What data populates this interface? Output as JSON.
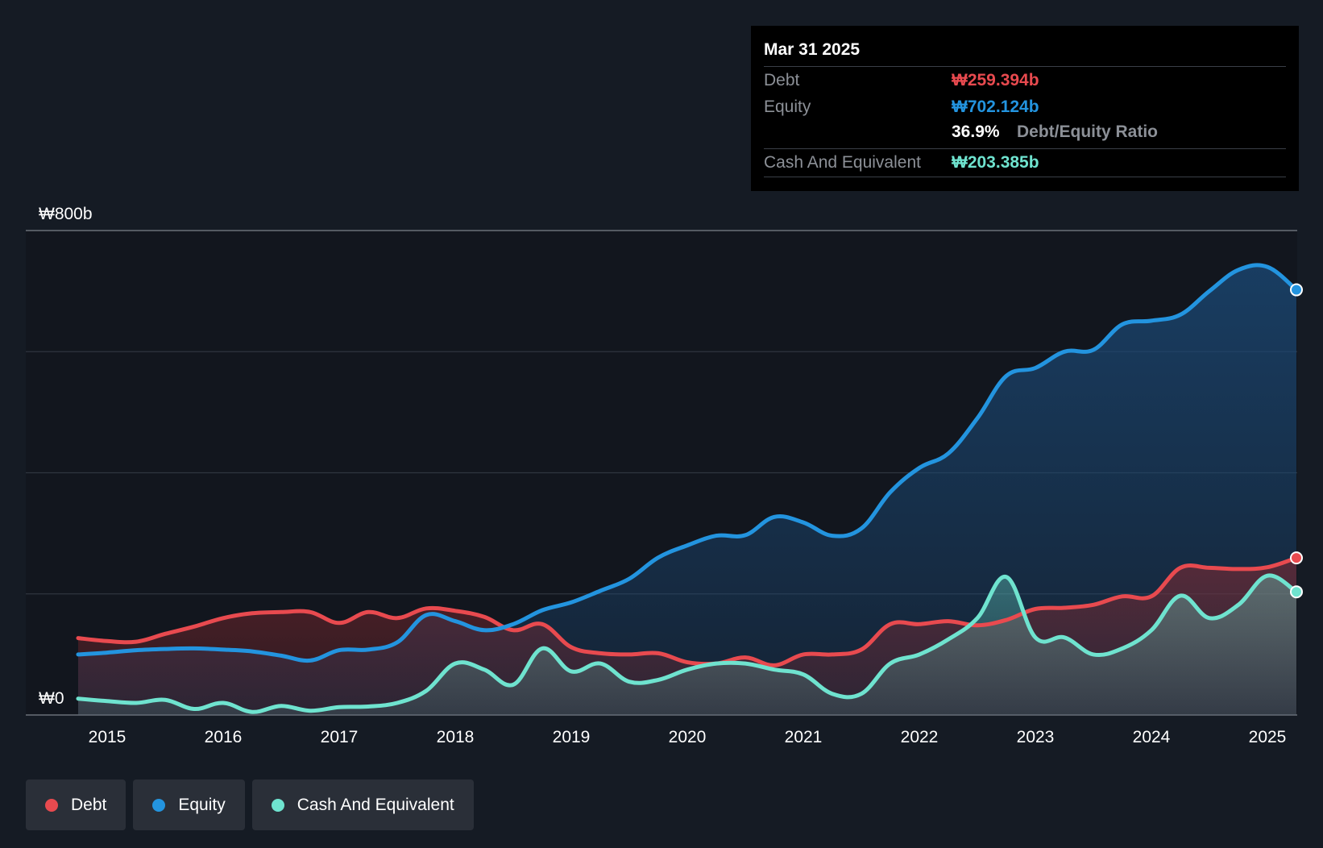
{
  "tooltip": {
    "date": "Mar 31 2025",
    "debt_label": "Debt",
    "debt_value": "₩259.394b",
    "equity_label": "Equity",
    "equity_value": "₩702.124b",
    "ratio_value": "36.9%",
    "ratio_label": "Debt/Equity Ratio",
    "cash_label": "Cash And Equivalent",
    "cash_value": "₩203.385b"
  },
  "legend": [
    {
      "label": "Debt",
      "color": "#e84a4f"
    },
    {
      "label": "Equity",
      "color": "#2394df"
    },
    {
      "label": "Cash And Equivalent",
      "color": "#6fe3cf"
    }
  ],
  "chart_data": {
    "type": "area",
    "y_unit": "₩ billions",
    "ylim": [
      0,
      800
    ],
    "y_tick_labels": [
      {
        "value": 800,
        "label": "₩800b"
      },
      {
        "value": 0,
        "label": "₩0"
      }
    ],
    "y_gridlines": [
      0,
      200,
      400,
      600,
      800
    ],
    "xlim": [
      2014.6,
      2025.25
    ],
    "x_ticks": [
      2015,
      2016,
      2017,
      2018,
      2019,
      2020,
      2021,
      2022,
      2023,
      2024,
      2025
    ],
    "x_tick_labels": [
      "2015",
      "2016",
      "2017",
      "2018",
      "2019",
      "2020",
      "2021",
      "2022",
      "2023",
      "2024",
      "2025"
    ],
    "grid": true,
    "legend_position": "bottom-left",
    "series": [
      {
        "name": "Debt",
        "color": "#e84a4f",
        "points": [
          [
            2014.75,
            127
          ],
          [
            2015.0,
            122
          ],
          [
            2015.25,
            121
          ],
          [
            2015.5,
            134
          ],
          [
            2015.75,
            146
          ],
          [
            2016.0,
            160
          ],
          [
            2016.25,
            168
          ],
          [
            2016.5,
            170
          ],
          [
            2016.75,
            170
          ],
          [
            2017.0,
            152
          ],
          [
            2017.25,
            170
          ],
          [
            2017.5,
            160
          ],
          [
            2017.75,
            176
          ],
          [
            2018.0,
            172
          ],
          [
            2018.25,
            162
          ],
          [
            2018.5,
            140
          ],
          [
            2018.75,
            150
          ],
          [
            2019.0,
            112
          ],
          [
            2019.25,
            102
          ],
          [
            2019.5,
            100
          ],
          [
            2019.75,
            102
          ],
          [
            2020.0,
            87
          ],
          [
            2020.25,
            85
          ],
          [
            2020.5,
            95
          ],
          [
            2020.75,
            82
          ],
          [
            2021.0,
            100
          ],
          [
            2021.25,
            100
          ],
          [
            2021.5,
            108
          ],
          [
            2021.75,
            150
          ],
          [
            2022.0,
            150
          ],
          [
            2022.25,
            155
          ],
          [
            2022.5,
            148
          ],
          [
            2022.75,
            157
          ],
          [
            2023.0,
            175
          ],
          [
            2023.25,
            177
          ],
          [
            2023.5,
            182
          ],
          [
            2023.75,
            196
          ],
          [
            2024.0,
            196
          ],
          [
            2024.25,
            243
          ],
          [
            2024.5,
            243
          ],
          [
            2024.75,
            241
          ],
          [
            2025.0,
            244
          ],
          [
            2025.25,
            259.4
          ]
        ]
      },
      {
        "name": "Equity",
        "color": "#2394df",
        "points": [
          [
            2014.75,
            100
          ],
          [
            2015.0,
            103
          ],
          [
            2015.25,
            107
          ],
          [
            2015.5,
            109
          ],
          [
            2015.75,
            110
          ],
          [
            2016.0,
            108
          ],
          [
            2016.25,
            105
          ],
          [
            2016.5,
            98
          ],
          [
            2016.75,
            90
          ],
          [
            2017.0,
            107
          ],
          [
            2017.25,
            108
          ],
          [
            2017.5,
            120
          ],
          [
            2017.75,
            165
          ],
          [
            2018.0,
            155
          ],
          [
            2018.25,
            140
          ],
          [
            2018.5,
            150
          ],
          [
            2018.75,
            173
          ],
          [
            2019.0,
            186
          ],
          [
            2019.25,
            205
          ],
          [
            2019.5,
            225
          ],
          [
            2019.75,
            260
          ],
          [
            2020.0,
            280
          ],
          [
            2020.25,
            296
          ],
          [
            2020.5,
            297
          ],
          [
            2020.75,
            327
          ],
          [
            2021.0,
            318
          ],
          [
            2021.25,
            296
          ],
          [
            2021.5,
            308
          ],
          [
            2021.75,
            368
          ],
          [
            2022.0,
            408
          ],
          [
            2022.25,
            432
          ],
          [
            2022.5,
            490
          ],
          [
            2022.75,
            560
          ],
          [
            2023.0,
            573
          ],
          [
            2023.25,
            600
          ],
          [
            2023.5,
            603
          ],
          [
            2023.75,
            645
          ],
          [
            2024.0,
            651
          ],
          [
            2024.25,
            661
          ],
          [
            2024.5,
            700
          ],
          [
            2024.75,
            735
          ],
          [
            2025.0,
            740
          ],
          [
            2025.25,
            702.1
          ]
        ]
      },
      {
        "name": "Cash And Equivalent",
        "color": "#6fe3cf",
        "points": [
          [
            2014.75,
            27
          ],
          [
            2015.0,
            23
          ],
          [
            2015.25,
            20
          ],
          [
            2015.5,
            25
          ],
          [
            2015.75,
            10
          ],
          [
            2016.0,
            20
          ],
          [
            2016.25,
            5
          ],
          [
            2016.5,
            15
          ],
          [
            2016.75,
            7
          ],
          [
            2017.0,
            13
          ],
          [
            2017.25,
            14
          ],
          [
            2017.5,
            20
          ],
          [
            2017.75,
            40
          ],
          [
            2018.0,
            85
          ],
          [
            2018.25,
            75
          ],
          [
            2018.5,
            50
          ],
          [
            2018.75,
            110
          ],
          [
            2019.0,
            72
          ],
          [
            2019.25,
            85
          ],
          [
            2019.5,
            55
          ],
          [
            2019.75,
            58
          ],
          [
            2020.0,
            75
          ],
          [
            2020.25,
            85
          ],
          [
            2020.5,
            85
          ],
          [
            2020.75,
            75
          ],
          [
            2021.0,
            67
          ],
          [
            2021.25,
            35
          ],
          [
            2021.5,
            35
          ],
          [
            2021.75,
            85
          ],
          [
            2022.0,
            100
          ],
          [
            2022.25,
            125
          ],
          [
            2022.5,
            160
          ],
          [
            2022.75,
            228
          ],
          [
            2023.0,
            128
          ],
          [
            2023.25,
            128
          ],
          [
            2023.5,
            100
          ],
          [
            2023.75,
            110
          ],
          [
            2024.0,
            140
          ],
          [
            2024.25,
            197
          ],
          [
            2024.5,
            160
          ],
          [
            2024.75,
            182
          ],
          [
            2025.0,
            230
          ],
          [
            2025.25,
            203.4
          ]
        ]
      }
    ]
  }
}
